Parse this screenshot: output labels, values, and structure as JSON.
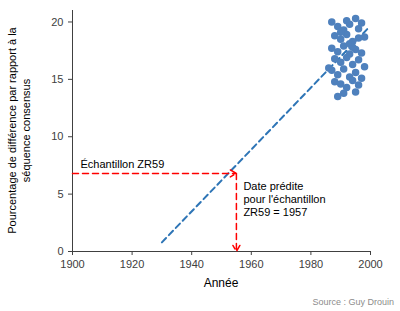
{
  "chart_data": {
    "type": "scatter",
    "x": [
      1987,
      1989,
      1991,
      1993,
      1995,
      1997,
      1988,
      1990,
      1992,
      1994,
      1996,
      1998,
      1987,
      1989,
      1991,
      1993,
      1995,
      1997,
      1988,
      1990,
      1992,
      1994,
      1996,
      1998,
      1986,
      1987,
      1989,
      1991,
      1993,
      1995,
      1997,
      1988,
      1990,
      1992,
      1994,
      1996,
      1989,
      1991,
      1995,
      1994,
      1990,
      1992,
      1996,
      1993
    ],
    "values": [
      20,
      19.6,
      19.3,
      19.8,
      20.3,
      19.9,
      18.8,
      18.5,
      18.9,
      18.3,
      18.6,
      18.7,
      17.7,
      17.4,
      17.9,
      17.2,
      17.6,
      17.3,
      16.8,
      16.5,
      16.9,
      16.3,
      16.7,
      16.1,
      16,
      15.8,
      15.4,
      15.9,
      15.2,
      15.6,
      15.1,
      14.8,
      14.6,
      14.3,
      14.9,
      14.5,
      13.5,
      13.8,
      13.9,
      17.8,
      19.1,
      20.1,
      19.4,
      18.1
    ],
    "color": "#4f81bd",
    "marker": "circle",
    "xlabel": "Année",
    "ylabel": "Pourcentage de différence par rapport à la\nséquence consensus",
    "xlim": [
      1900,
      2000
    ],
    "ylim": [
      0,
      21
    ],
    "xticks": [
      1900,
      1920,
      1940,
      1960,
      1980,
      2000
    ],
    "yticks": [
      0,
      5,
      10,
      15,
      20
    ],
    "trend_line": {
      "x": [
        1930,
        1999
      ],
      "values": [
        0.8,
        19.4
      ],
      "color": "#2e75b6",
      "line_style": "dashed"
    },
    "annotations": [
      {
        "label": "Échantillon ZR59",
        "text": "Date prédite\npour l'échantillon\nZR59 = 1957",
        "x": 1955,
        "y": 6.8,
        "color": "#ff0000",
        "line_style": "dashed"
      }
    ],
    "source": "Source : Guy Drouin"
  }
}
